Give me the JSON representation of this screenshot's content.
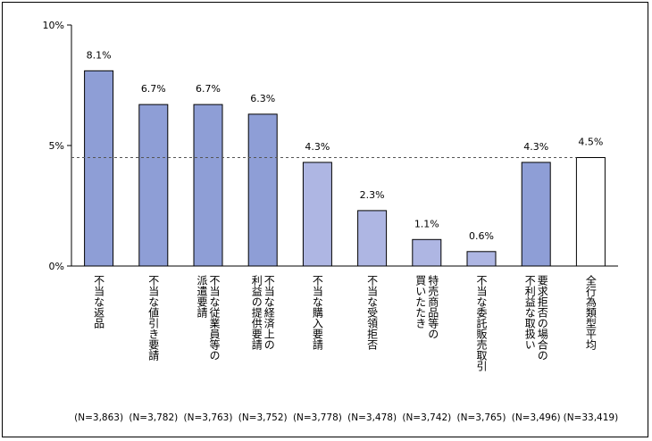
{
  "chart_data": {
    "type": "bar",
    "categories": [
      [
        "不当な返品"
      ],
      [
        "不当な値引き要請"
      ],
      [
        "派遣要請",
        "不当な従業員等の"
      ],
      [
        "利益の提供要請",
        "不当な経済上の"
      ],
      [
        "不当な購入要請"
      ],
      [
        "不当な受領拒否"
      ],
      [
        "買いたたき",
        "特売商品等の"
      ],
      [
        "不当な委託販売取引"
      ],
      [
        "不利益な取扱い",
        "要求拒否の場合の"
      ],
      [
        "全行為類型平均"
      ]
    ],
    "values": [
      8.1,
      6.7,
      6.7,
      6.3,
      4.3,
      2.3,
      1.1,
      0.6,
      4.3,
      4.5
    ],
    "value_labels": [
      "8.1%",
      "6.7%",
      "6.7%",
      "6.3%",
      "4.3%",
      "2.3%",
      "1.1%",
      "0.6%",
      "4.3%",
      "4.5%"
    ],
    "n_labels": [
      "(N=3,863)",
      "(N=3,782)",
      "(N=3,763)",
      "(N=3,752)",
      "(N=3,778)",
      "(N=3,478)",
      "(N=3,742)",
      "(N=3,765)",
      "(N=3,496)",
      "(N=33,419)"
    ],
    "bar_colors": [
      "#8e9ed6",
      "#8e9ed6",
      "#8e9ed6",
      "#8e9ed6",
      "#aeb6e3",
      "#aeb6e3",
      "#aeb6e3",
      "#aeb6e3",
      "#8e9ed6",
      "#ffffff"
    ],
    "bar_stroke": "#000000",
    "ylim": [
      0,
      10
    ],
    "yticks": [
      0,
      5,
      10
    ],
    "ytick_labels": [
      "0%",
      "5%",
      "10%"
    ],
    "average_line": 4.5,
    "average_line_color": "#555555",
    "xlabel": "",
    "ylabel": "",
    "grid": false
  }
}
